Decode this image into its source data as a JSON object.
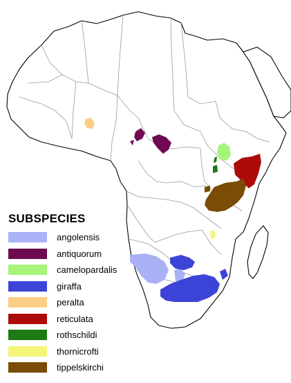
{
  "legend": {
    "title": "SUBSPECIES",
    "items": [
      {
        "key": "angolensis",
        "label": "angolensis",
        "color": "#aab2f5"
      },
      {
        "key": "antiquorum",
        "label": "antiquorum",
        "color": "#6e0a52"
      },
      {
        "key": "camelopardalis",
        "label": "camelopardalis",
        "color": "#a6f57a"
      },
      {
        "key": "giraffa",
        "label": "giraffa",
        "color": "#3c44d8"
      },
      {
        "key": "peralta",
        "label": "peralta",
        "color": "#fccd86"
      },
      {
        "key": "reticulata",
        "label": "reticulata",
        "color": "#ad0a0a"
      },
      {
        "key": "rothschildi",
        "label": "rothschildi",
        "color": "#1e7a14"
      },
      {
        "key": "thornicrofti",
        "label": "thornicrofti",
        "color": "#f5f57a"
      },
      {
        "key": "tippelskirchi",
        "label": "tippelskirchi",
        "color": "#7a4c06"
      }
    ]
  },
  "map": {
    "land_color": "#ffffff",
    "outline_color": "#000000",
    "border_color": "#9a9a9a"
  }
}
